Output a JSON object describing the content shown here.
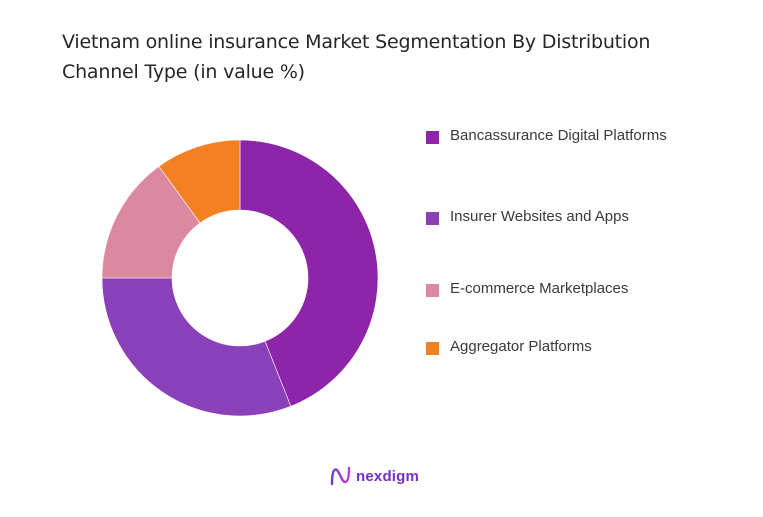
{
  "title": "Vietnam online insurance Market Segmentation By Distribution Channel Type (in value %)",
  "legend": [
    {
      "label": "Bancassurance Digital Platforms",
      "color": "#8e24aa"
    },
    {
      "label": "Insurer Websites and Apps",
      "color": "#8a40b8"
    },
    {
      "label": "E-commerce Marketplaces",
      "color": "#dc88a0"
    },
    {
      "label": "Aggregator Platforms",
      "color": "#f48024"
    }
  ],
  "logo": {
    "text": "nexdigm",
    "icon": "nexdigm-wave-icon"
  },
  "chart_data": {
    "type": "pie",
    "subtype": "donut",
    "title": "Vietnam online insurance Market Segmentation By Distribution Channel Type (in value %)",
    "categories": [
      "Bancassurance Digital Platforms",
      "Insurer Websites and Apps",
      "E-commerce Marketplaces",
      "Aggregator Platforms"
    ],
    "values": [
      44,
      31,
      15,
      10
    ],
    "colors": [
      "#8e24aa",
      "#8a40b8",
      "#dc88a0",
      "#f48024"
    ],
    "unit": "%",
    "legend_position": "right",
    "start_angle": "12 o'clock, clockwise"
  }
}
